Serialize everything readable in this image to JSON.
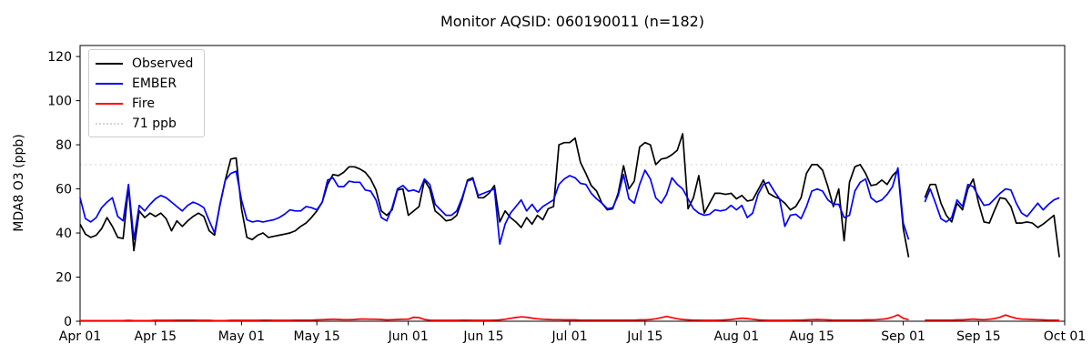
{
  "chart_data": {
    "type": "line",
    "title": "Monitor AQSID: 060190011 (n=182)",
    "xlabel": "",
    "ylabel": "MDA8 O3 (ppb)",
    "x_start_date": "Apr 01",
    "x_end_date": "Oct 01",
    "x_range": [
      0,
      183
    ],
    "ylim": [
      0,
      125
    ],
    "y_ticks": [
      0,
      20,
      40,
      60,
      80,
      100,
      120
    ],
    "x_ticks": [
      {
        "day": 0,
        "label": "Apr 01"
      },
      {
        "day": 14,
        "label": "Apr 15"
      },
      {
        "day": 30,
        "label": "May 01"
      },
      {
        "day": 44,
        "label": "May 15"
      },
      {
        "day": 61,
        "label": "Jun 01"
      },
      {
        "day": 75,
        "label": "Jun 15"
      },
      {
        "day": 91,
        "label": "Jul 01"
      },
      {
        "day": 105,
        "label": "Jul 15"
      },
      {
        "day": 122,
        "label": "Aug 01"
      },
      {
        "day": 136,
        "label": "Aug 15"
      },
      {
        "day": 153,
        "label": "Sep 01"
      },
      {
        "day": 167,
        "label": "Sep 15"
      },
      {
        "day": 183,
        "label": "Oct 01"
      }
    ],
    "threshold": {
      "value": 71,
      "label": "71 ppb",
      "color": "#d3d3d3",
      "style": "dotted"
    },
    "grid": false,
    "legend_position": "upper-left",
    "data_gap_note": "no data for Sep 03 and Sep 04",
    "series": [
      {
        "name": "Observed",
        "color": "#000000",
        "values": [
          44,
          39.5,
          38,
          39,
          42,
          47,
          43,
          38,
          37.5,
          61,
          32,
          50,
          47,
          49,
          47.5,
          49,
          46.5,
          41,
          45.5,
          43,
          45.5,
          47.5,
          49,
          47.5,
          41,
          39,
          53,
          64,
          73.5,
          74,
          51,
          38,
          37,
          39,
          40,
          38,
          38.5,
          39,
          39.5,
          40,
          41,
          43,
          44.5,
          47,
          50,
          54,
          62,
          66.5,
          66,
          67.5,
          70,
          70,
          69,
          67.5,
          64.5,
          59.5,
          50,
          48,
          50.5,
          59.5,
          60,
          48,
          50,
          52,
          64,
          60,
          50,
          48,
          45.5,
          46,
          48,
          55,
          64,
          65,
          56,
          56,
          58,
          61.5,
          45,
          50,
          47,
          45,
          42.5,
          47,
          44,
          48,
          46,
          51,
          52,
          80,
          81,
          81,
          83,
          72,
          67,
          61.5,
          59,
          53.5,
          50.5,
          51,
          58,
          70.5,
          60,
          63.5,
          79,
          81,
          80,
          71,
          73.5,
          74,
          75.5,
          77.5,
          85,
          51,
          56,
          66,
          49,
          53.5,
          58,
          58,
          57.5,
          58,
          55.5,
          57,
          54.5,
          55,
          59.5,
          64,
          58,
          56.5,
          55.5,
          53.5,
          50.5,
          52,
          56,
          67,
          71,
          71,
          68.5,
          61,
          52,
          60,
          36.5,
          63,
          70,
          71,
          67,
          61.5,
          62,
          64,
          62,
          66,
          68.5,
          42,
          29,
          null,
          null,
          56,
          62,
          62,
          53.5,
          48,
          45,
          53.5,
          50.5,
          60,
          64.5,
          53.5,
          45,
          44.5,
          50.5,
          56,
          55.5,
          52,
          44.5,
          44.5,
          45,
          44.5,
          42.5,
          44,
          46,
          48,
          29
        ]
      },
      {
        "name": "EMBER",
        "color": "#0000ff",
        "values": [
          56,
          46.5,
          45,
          47,
          51.5,
          54,
          56,
          47.5,
          45.5,
          62,
          37,
          52.5,
          50,
          53,
          55.5,
          57,
          56,
          54,
          52,
          50,
          52.5,
          54,
          53,
          51.5,
          45.5,
          40,
          52.5,
          64,
          67,
          68,
          55,
          46,
          45,
          45.5,
          45,
          45.5,
          46,
          47,
          48.5,
          50.5,
          50,
          50,
          52,
          51.5,
          50.5,
          54,
          64,
          65,
          61,
          61,
          63.5,
          63,
          63,
          59.5,
          59,
          55,
          47,
          45.5,
          51.5,
          60,
          61.5,
          59,
          59.5,
          58.5,
          64.5,
          62,
          53,
          50.5,
          48,
          48,
          50,
          56,
          63.5,
          64.5,
          57,
          58,
          59,
          60,
          35,
          44,
          49,
          52,
          55,
          50,
          53,
          49.5,
          52,
          53.5,
          55,
          62,
          64.5,
          66,
          65,
          62.5,
          62,
          58,
          55.5,
          53.5,
          51,
          51.5,
          57,
          66.5,
          55.5,
          53.5,
          62,
          68.5,
          64.5,
          56,
          53.5,
          57.5,
          65,
          62,
          60,
          55.5,
          51,
          49,
          48,
          48.5,
          50.5,
          50,
          50.5,
          52.5,
          50.5,
          52.5,
          47,
          49,
          57.5,
          62,
          63,
          59,
          55.5,
          43,
          48,
          48.5,
          46.5,
          52,
          59,
          60,
          59,
          55,
          53,
          53,
          47,
          48,
          59,
          63,
          64.5,
          56,
          54,
          55,
          57.5,
          61,
          69.5,
          44.5,
          37,
          null,
          null,
          54,
          60,
          53.5,
          46.5,
          45,
          47,
          55,
          52,
          62,
          61,
          56.5,
          52.5,
          53,
          55.5,
          58,
          60,
          59.5,
          53.5,
          49,
          47.5,
          50.5,
          53.5,
          50.5,
          53,
          55,
          56
        ]
      },
      {
        "name": "Fire",
        "color": "#ff0000",
        "values": [
          0.3,
          0.3,
          0.3,
          0.3,
          0.3,
          0.3,
          0.3,
          0.3,
          0.3,
          0.4,
          0.3,
          0.3,
          0.3,
          0.3,
          0.4,
          0.4,
          0.4,
          0.4,
          0.5,
          0.5,
          0.5,
          0.5,
          0.4,
          0.4,
          0.4,
          0.3,
          0.3,
          0.3,
          0.4,
          0.4,
          0.4,
          0.4,
          0.4,
          0.4,
          0.5,
          0.5,
          0.4,
          0.4,
          0.4,
          0.4,
          0.5,
          0.5,
          0.5,
          0.5,
          0.6,
          0.7,
          0.8,
          0.9,
          0.8,
          0.7,
          0.7,
          0.8,
          1.0,
          1.0,
          0.9,
          0.9,
          0.8,
          0.6,
          0.7,
          0.8,
          0.9,
          0.9,
          1.8,
          1.6,
          0.8,
          0.5,
          0.4,
          0.4,
          0.4,
          0.4,
          0.4,
          0.5,
          0.5,
          0.4,
          0.4,
          0.4,
          0.4,
          0.5,
          0.6,
          0.9,
          1.3,
          1.7,
          2.0,
          1.8,
          1.4,
          1.1,
          0.9,
          0.8,
          0.7,
          0.7,
          0.6,
          0.6,
          0.6,
          0.5,
          0.5,
          0.5,
          0.5,
          0.5,
          0.5,
          0.5,
          0.5,
          0.5,
          0.5,
          0.5,
          0.6,
          0.6,
          0.8,
          1.1,
          1.6,
          2.2,
          1.6,
          1.1,
          0.8,
          0.6,
          0.5,
          0.5,
          0.4,
          0.4,
          0.4,
          0.5,
          0.6,
          0.8,
          1.1,
          1.4,
          1.2,
          0.9,
          0.6,
          0.5,
          0.4,
          0.4,
          0.4,
          0.4,
          0.4,
          0.5,
          0.5,
          0.6,
          0.7,
          0.8,
          0.7,
          0.6,
          0.5,
          0.5,
          0.5,
          0.5,
          0.5,
          0.5,
          0.6,
          0.6,
          0.7,
          0.9,
          1.2,
          1.9,
          2.9,
          1.3,
          0.7,
          null,
          null,
          0.5,
          0.5,
          0.5,
          0.5,
          0.5,
          0.5,
          0.6,
          0.6,
          0.8,
          1.0,
          0.8,
          0.7,
          0.9,
          1.2,
          1.8,
          2.8,
          2.0,
          1.3,
          1.0,
          0.9,
          0.8,
          0.7,
          0.6,
          0.5,
          0.5,
          0.4
        ]
      }
    ]
  },
  "legend": {
    "items": [
      {
        "label": "Observed"
      },
      {
        "label": "EMBER"
      },
      {
        "label": "Fire"
      },
      {
        "label": "71 ppb"
      }
    ]
  }
}
